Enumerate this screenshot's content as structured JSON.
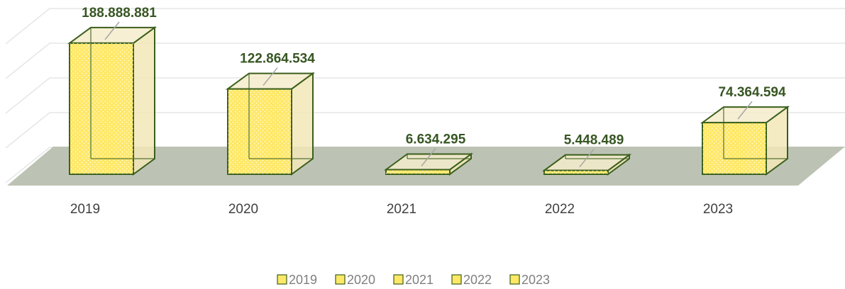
{
  "chart_data": {
    "type": "bar3d",
    "categories": [
      "2019",
      "2020",
      "2021",
      "2022",
      "2023"
    ],
    "values": [
      188888881,
      122864534,
      6634295,
      5448489,
      74364594
    ],
    "value_labels": [
      "188.888.881",
      "122.864.534",
      "6.634.295",
      "5.448.489",
      "74.364.594"
    ],
    "color": "#ffe866",
    "edge_color": "#3b5f1c",
    "floor_color": "#bcc3b4",
    "ylim": [
      0,
      200000000
    ],
    "yticks": [
      0,
      50000000,
      100000000,
      150000000,
      200000000
    ],
    "grid": true,
    "legend": "bottom"
  }
}
